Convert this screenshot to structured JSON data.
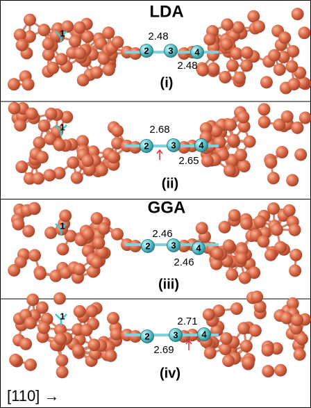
{
  "sections": [
    {
      "title": "LDA",
      "panels": [
        {
          "label": "(i)",
          "atoms": [
            "1",
            "2",
            "3",
            "4"
          ],
          "bonds": [
            "2.48",
            "2.48"
          ]
        },
        {
          "label": "(ii)",
          "atoms": [
            "1",
            "2",
            "3",
            "4"
          ],
          "bonds": [
            "2.68",
            "2.65"
          ]
        }
      ]
    },
    {
      "title": "GGA",
      "panels": [
        {
          "label": "(iii)",
          "atoms": [
            "1",
            "2",
            "3",
            "4"
          ],
          "bonds": [
            "2.46",
            "2.46"
          ]
        },
        {
          "label": "(iv)",
          "atoms": [
            "1",
            "2",
            "3",
            "4"
          ],
          "bonds": [
            "2.71",
            "2.69"
          ]
        }
      ]
    }
  ],
  "direction": "[110] →"
}
